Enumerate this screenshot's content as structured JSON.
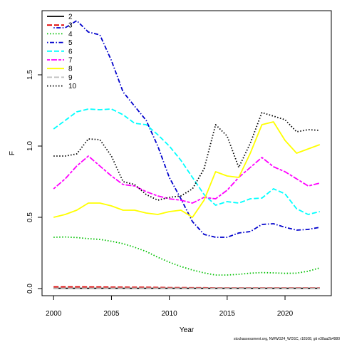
{
  "chart_data": {
    "type": "line",
    "title": "",
    "xlabel": "Year",
    "ylabel": "F",
    "xlim": [
      1999.0,
      2024.0
    ],
    "ylim": [
      -0.05,
      1.95
    ],
    "x_ticks": [
      2000,
      2005,
      2010,
      2015,
      2020
    ],
    "y_ticks": [
      0.0,
      0.5,
      1.0,
      1.5
    ],
    "y_tick_labels": [
      "0.0",
      "0.5",
      "1.0",
      "1.5"
    ],
    "grid": false,
    "legend_position": "top-left",
    "x": [
      2000,
      2001,
      2002,
      2003,
      2004,
      2005,
      2006,
      2007,
      2008,
      2009,
      2010,
      2011,
      2012,
      2013,
      2014,
      2015,
      2016,
      2017,
      2018,
      2019,
      2020,
      2021,
      2022,
      2023
    ],
    "series": [
      {
        "name": "2",
        "color": "#000000",
        "dash": "solid",
        "values": [
          0.002,
          0.002,
          0.002,
          0.002,
          0.002,
          0.002,
          0.002,
          0.002,
          0.002,
          0.002,
          0.002,
          0.002,
          0.002,
          0.002,
          0.002,
          0.002,
          0.002,
          0.002,
          0.002,
          0.002,
          0.002,
          0.002,
          0.002,
          0.002
        ]
      },
      {
        "name": "3",
        "color": "#DF0000",
        "dash": "longdash",
        "values": [
          0.012,
          0.012,
          0.012,
          0.011,
          0.011,
          0.01,
          0.01,
          0.009,
          0.009,
          0.008,
          0.007,
          0.007,
          0.006,
          0.006,
          0.005,
          0.005,
          0.005,
          0.005,
          0.005,
          0.005,
          0.005,
          0.005,
          0.005,
          0.005
        ]
      },
      {
        "name": "4",
        "color": "#00C000",
        "dash": "dotted",
        "values": [
          0.36,
          0.362,
          0.358,
          0.35,
          0.345,
          0.332,
          0.315,
          0.29,
          0.26,
          0.22,
          0.185,
          0.155,
          0.13,
          0.11,
          0.095,
          0.095,
          0.1,
          0.108,
          0.112,
          0.11,
          0.107,
          0.108,
          0.122,
          0.145
        ]
      },
      {
        "name": "5",
        "color": "#0000CC",
        "dash": "dotdash",
        "values": [
          1.83,
          1.83,
          1.88,
          1.8,
          1.78,
          1.6,
          1.38,
          1.28,
          1.18,
          1.0,
          0.78,
          0.63,
          0.47,
          0.38,
          0.36,
          0.36,
          0.39,
          0.4,
          0.45,
          0.455,
          0.43,
          0.41,
          0.415,
          0.43
        ]
      },
      {
        "name": "6",
        "color": "#00FFFF",
        "dash": "longdash",
        "values": [
          1.12,
          1.18,
          1.24,
          1.26,
          1.255,
          1.26,
          1.22,
          1.16,
          1.15,
          1.08,
          1.0,
          0.9,
          0.78,
          0.66,
          0.585,
          0.61,
          0.6,
          0.63,
          0.635,
          0.7,
          0.665,
          0.56,
          0.52,
          0.54
        ]
      },
      {
        "name": "7",
        "color": "#FF00FF",
        "dash": "twodash",
        "values": [
          0.7,
          0.77,
          0.86,
          0.93,
          0.86,
          0.79,
          0.73,
          0.72,
          0.68,
          0.65,
          0.63,
          0.62,
          0.6,
          0.64,
          0.63,
          0.69,
          0.78,
          0.85,
          0.92,
          0.855,
          0.82,
          0.77,
          0.72,
          0.74
        ]
      },
      {
        "name": "8",
        "color": "#FFFF00",
        "dash": "solid",
        "values": [
          0.5,
          0.52,
          0.55,
          0.6,
          0.6,
          0.58,
          0.55,
          0.55,
          0.53,
          0.52,
          0.54,
          0.55,
          0.5,
          0.62,
          0.82,
          0.79,
          0.78,
          0.95,
          1.15,
          1.17,
          1.04,
          0.95,
          0.98,
          1.01
        ]
      },
      {
        "name": "9",
        "color": "#BEBEBE",
        "dash": "longdash",
        "values": [
          0.003,
          0.003,
          0.003,
          0.003,
          0.003,
          0.003,
          0.003,
          0.003,
          0.003,
          0.003,
          0.003,
          0.003,
          0.003,
          0.003,
          0.003,
          0.003,
          0.003,
          0.003,
          0.003,
          0.003,
          0.003,
          0.003,
          0.003,
          0.003
        ]
      },
      {
        "name": "10",
        "color": "#000000",
        "dash": "dotted",
        "values": [
          0.93,
          0.93,
          0.945,
          1.05,
          1.045,
          0.93,
          0.75,
          0.73,
          0.66,
          0.62,
          0.64,
          0.65,
          0.7,
          0.84,
          1.15,
          1.07,
          0.85,
          1.02,
          1.235,
          1.21,
          1.185,
          1.1,
          1.115,
          1.11
        ]
      }
    ]
  },
  "footer_text": "stockassessment.org, NWWG24_WOSC, r18108, git e38aa2b4980"
}
